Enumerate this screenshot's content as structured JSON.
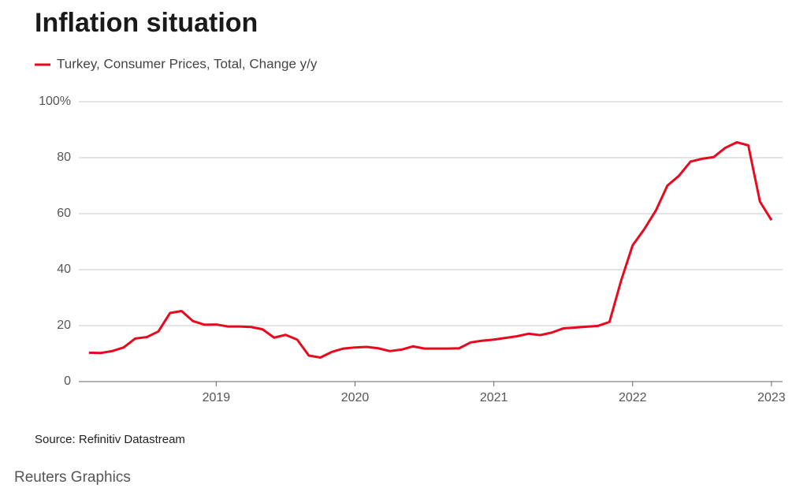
{
  "chart_data": {
    "type": "line",
    "title": "Inflation situation",
    "source": "Source: Refinitiv Datastream",
    "credit": "Reuters Graphics",
    "x": [
      2018.083,
      2018.167,
      2018.25,
      2018.333,
      2018.417,
      2018.5,
      2018.583,
      2018.667,
      2018.75,
      2018.833,
      2018.917,
      2019,
      2019.083,
      2019.167,
      2019.25,
      2019.333,
      2019.417,
      2019.5,
      2019.583,
      2019.667,
      2019.75,
      2019.833,
      2019.917,
      2020,
      2020.083,
      2020.167,
      2020.25,
      2020.333,
      2020.417,
      2020.5,
      2020.583,
      2020.667,
      2020.75,
      2020.833,
      2020.917,
      2021,
      2021.083,
      2021.167,
      2021.25,
      2021.333,
      2021.417,
      2021.5,
      2021.583,
      2021.667,
      2021.75,
      2021.833,
      2021.917,
      2022,
      2022.083,
      2022.167,
      2022.25,
      2022.333,
      2022.417,
      2022.5,
      2022.583,
      2022.667,
      2022.75,
      2022.833,
      2022.917,
      2023
    ],
    "series": [
      {
        "name": "Turkey, Consumer Prices, Total, Change y/y",
        "color": "#e8091e",
        "values": [
          10.3,
          10.2,
          10.9,
          12.2,
          15.4,
          15.9,
          17.9,
          24.5,
          25.2,
          21.6,
          20.3,
          20.4,
          19.7,
          19.7,
          19.5,
          18.7,
          15.7,
          16.7,
          15.0,
          9.3,
          8.6,
          10.6,
          11.8,
          12.2,
          12.4,
          11.9,
          10.9,
          11.4,
          12.6,
          11.8,
          11.8,
          11.8,
          11.9,
          14.0,
          14.6,
          15.0,
          15.6,
          16.2,
          17.1,
          16.6,
          17.5,
          19.0,
          19.3,
          19.6,
          19.9,
          21.3,
          36.1,
          48.7,
          54.4,
          61.1,
          70.0,
          73.5,
          78.6,
          79.6,
          80.2,
          83.5,
          85.5,
          84.4,
          64.3,
          57.7
        ]
      }
    ],
    "xlim": [
      2018.01,
      2023.08
    ],
    "xticks": [
      2019,
      2020,
      2021,
      2022,
      2023
    ],
    "ylim": [
      0,
      100
    ],
    "yticks": [
      0,
      20,
      40,
      60,
      80,
      {
        "value": 100,
        "label": "100%"
      }
    ],
    "grid": true
  }
}
